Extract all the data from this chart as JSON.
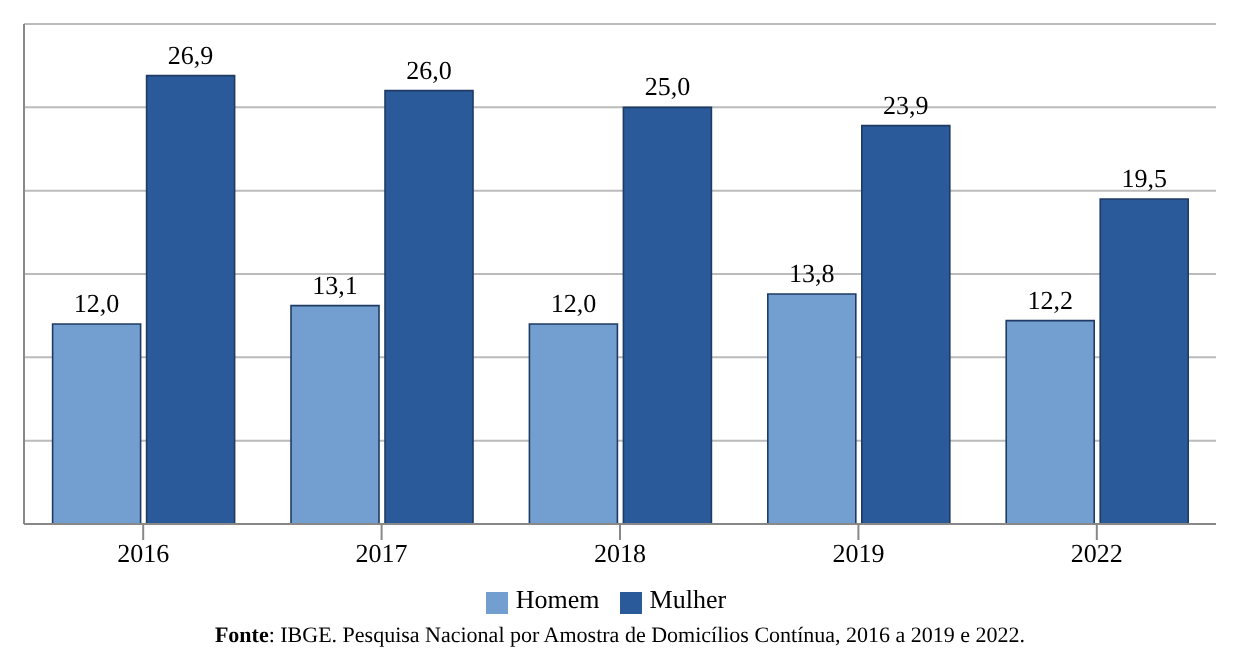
{
  "chart_data": {
    "type": "bar",
    "categories": [
      "2016",
      "2017",
      "2018",
      "2019",
      "2022"
    ],
    "series": [
      {
        "name": "Homem",
        "color": "#729fcf",
        "values": [
          12.0,
          13.1,
          12.0,
          13.8,
          12.2
        ],
        "value_labels": [
          "12,0",
          "13,1",
          "12,0",
          "13,8",
          "12,2"
        ]
      },
      {
        "name": "Mulher",
        "color": "#2a5a99",
        "values": [
          26.9,
          26.0,
          25.0,
          23.9,
          19.5
        ],
        "value_labels": [
          "26,9",
          "26,0",
          "25,0",
          "23,9",
          "19,5"
        ]
      }
    ],
    "ylim": [
      0,
      30
    ],
    "yticks": [
      {
        "value": 0,
        "label": null
      },
      {
        "value": 5,
        "label": null
      },
      {
        "value": 10,
        "label": null
      },
      {
        "value": 15,
        "label": null
      },
      {
        "value": 20,
        "label": null
      },
      {
        "value": 25,
        "label": null
      },
      {
        "value": 30,
        "label": null
      }
    ],
    "tick_labels": "x",
    "grid": "y",
    "legend": "bottom",
    "annotations": [
      "Fonte: IBGE. Pesquisa Nacional por Amostra de Domicílios Contínua, 2016 a 2019 e 2022."
    ]
  }
}
